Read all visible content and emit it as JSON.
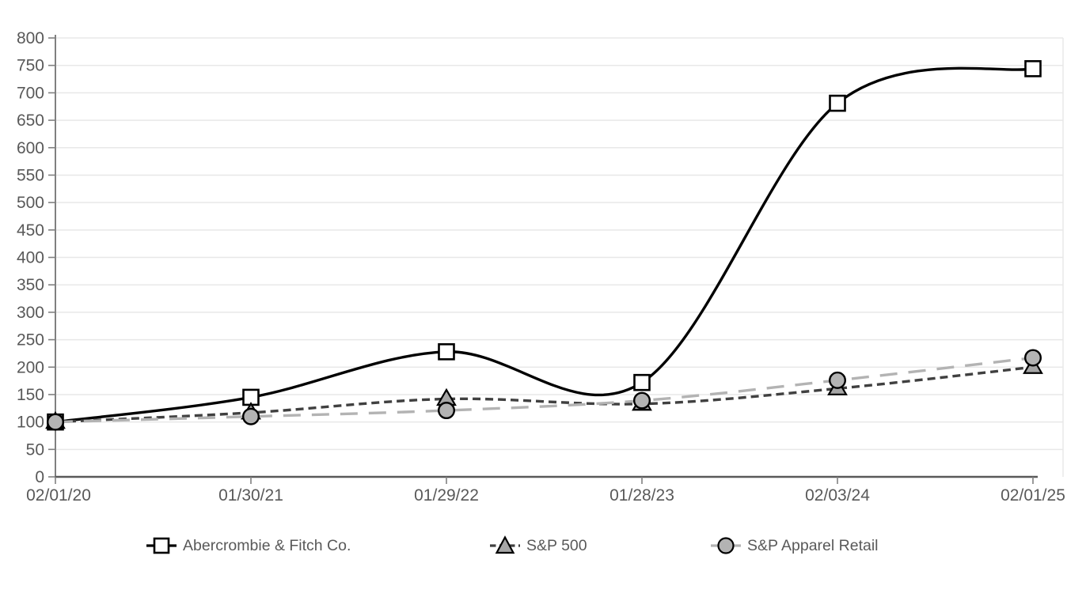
{
  "chart_data": {
    "type": "line",
    "title": "",
    "xlabel": "",
    "ylabel": "",
    "x_labels": [
      "02/01/20",
      "01/30/21",
      "01/29/22",
      "01/28/23",
      "02/03/24",
      "02/01/25"
    ],
    "ylim": [
      0,
      800
    ],
    "ytick_step": 50,
    "grid": true,
    "legend_position": "bottom",
    "series": [
      {
        "name": "Abercrombie & Fitch Co.",
        "values": [
          100,
          145,
          228,
          172,
          681,
          744
        ],
        "line_color": "#000000",
        "line_dash": "",
        "line_width": 3.4,
        "marker": "square",
        "marker_fill": "#ffffff",
        "marker_stroke": "#000000"
      },
      {
        "name": "S&P 500",
        "values": [
          100,
          117,
          142,
          133,
          161,
          200
        ],
        "line_color": "#404040",
        "line_dash": "10 6",
        "line_width": 3.4,
        "marker": "triangle",
        "marker_fill": "#a6a6a6",
        "marker_stroke": "#000000"
      },
      {
        "name": "S&P Apparel Retail",
        "values": [
          100,
          110,
          121,
          139,
          176,
          217
        ],
        "line_color": "#b3b3b3",
        "line_dash": "22 14",
        "line_width": 3.4,
        "marker": "circle",
        "marker_fill": "#b3b3b3",
        "marker_stroke": "#000000"
      }
    ],
    "colors": {
      "axis_text": "#595959",
      "gridline": "#e8e8e8",
      "y_axis_line": "#808080",
      "x_axis_line": "#595959",
      "tick": "#808080",
      "background": "#ffffff"
    }
  }
}
